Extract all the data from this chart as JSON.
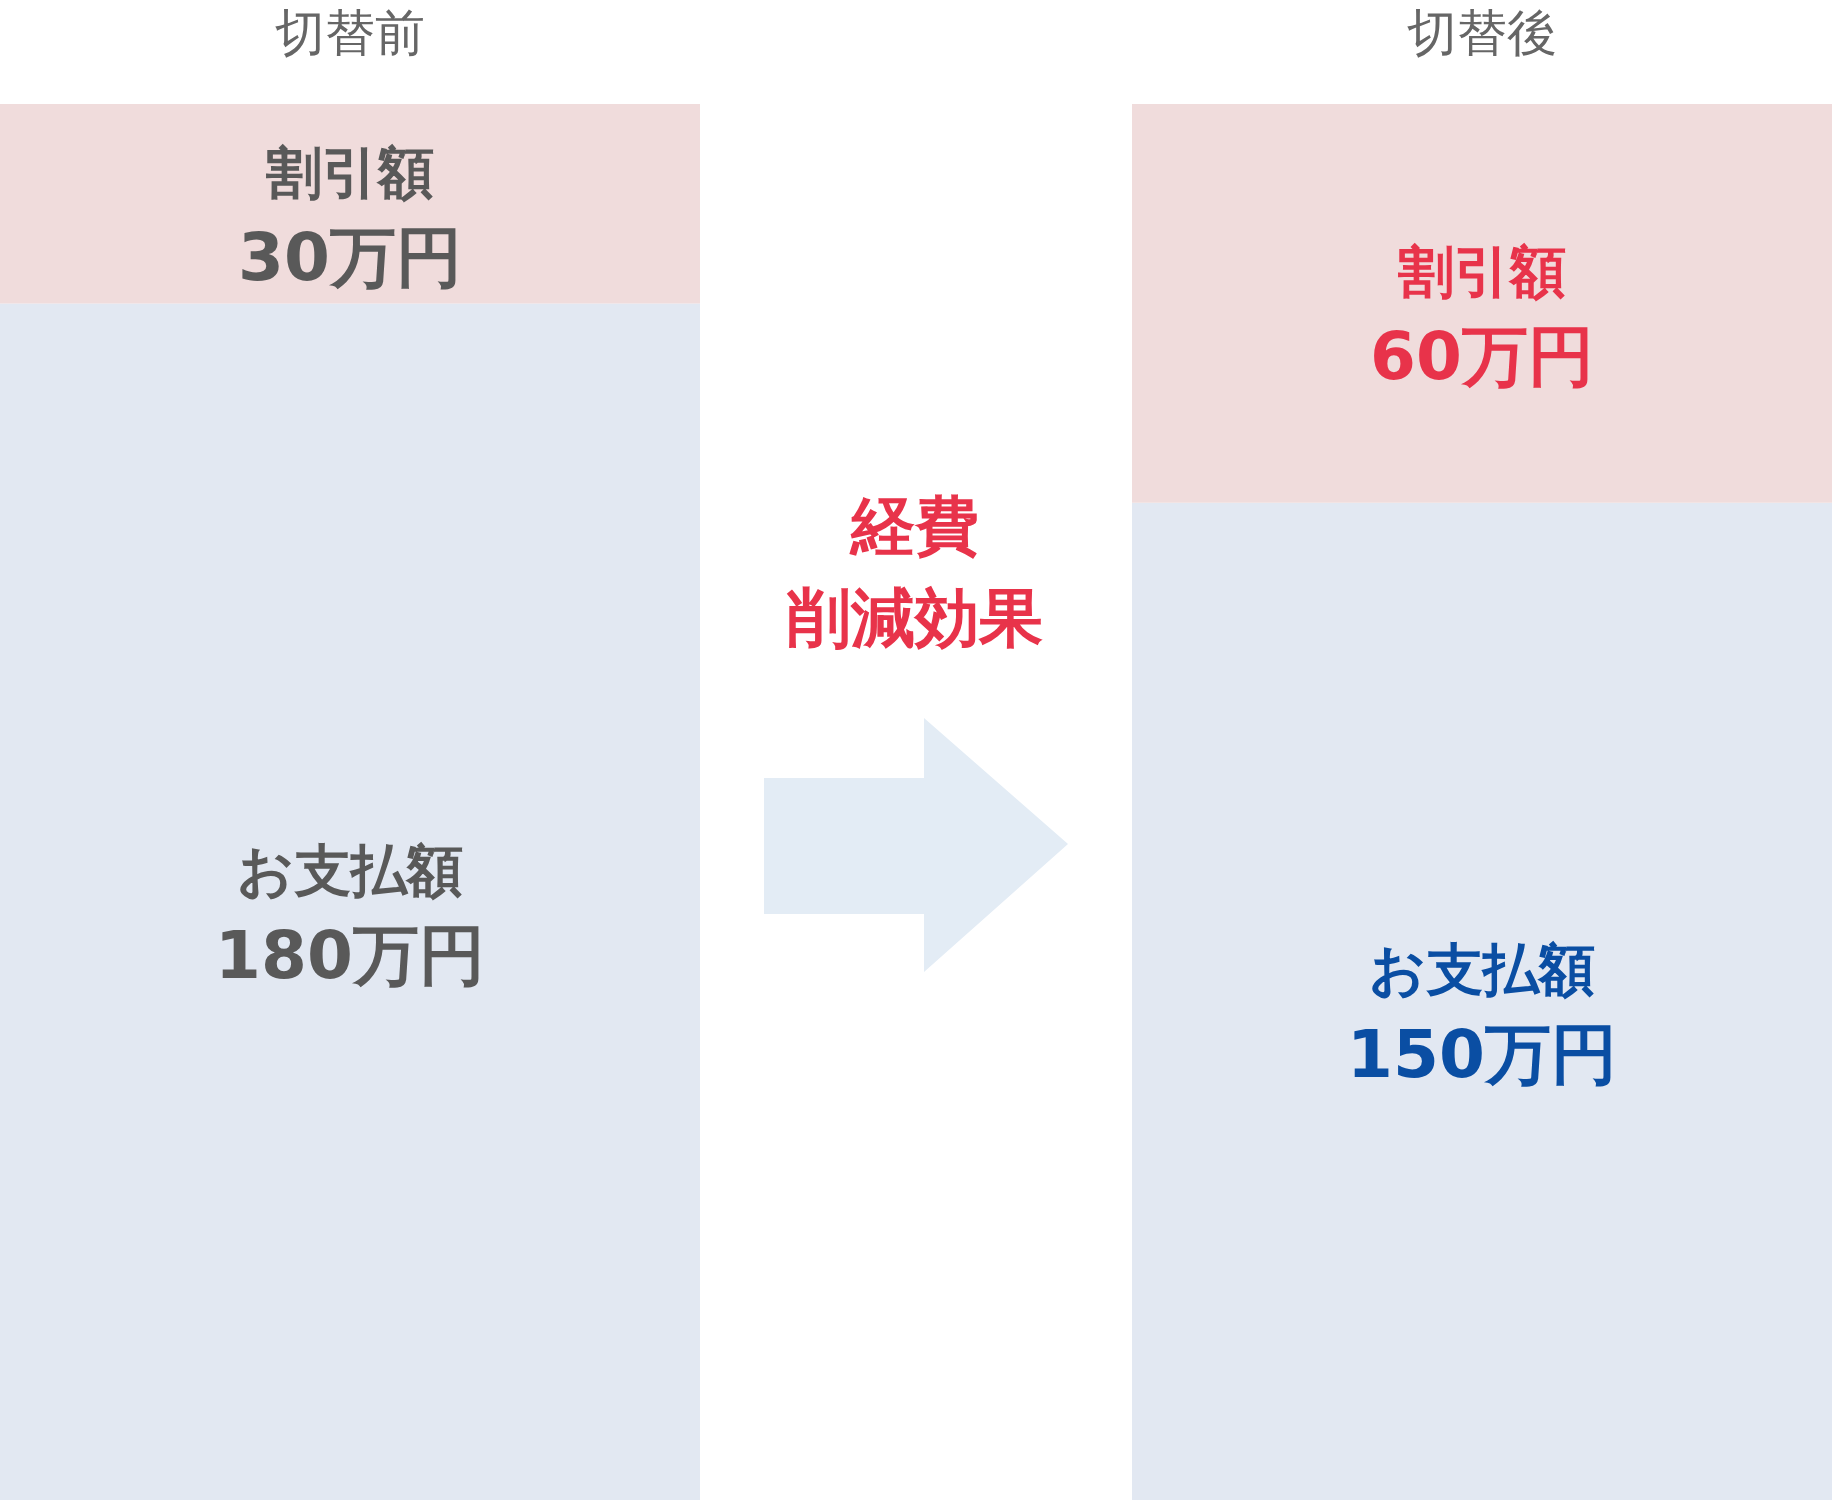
{
  "chart_data": {
    "type": "bar",
    "stacked": true,
    "categories": [
      "切替前",
      "切替後"
    ],
    "series": [
      {
        "name": "お支払額",
        "color": "#e2e8f2",
        "values": [
          180,
          150
        ],
        "value_labels": [
          "180万円",
          "150万円"
        ]
      },
      {
        "name": "割引額",
        "color": "#f0dcdc",
        "values": [
          30,
          60
        ],
        "value_labels": [
          "30万円",
          "60万円"
        ]
      }
    ],
    "ylim": [
      0,
      210
    ],
    "tick_labels": "x",
    "annotations": [
      "経費",
      "削減効果"
    ]
  }
}
